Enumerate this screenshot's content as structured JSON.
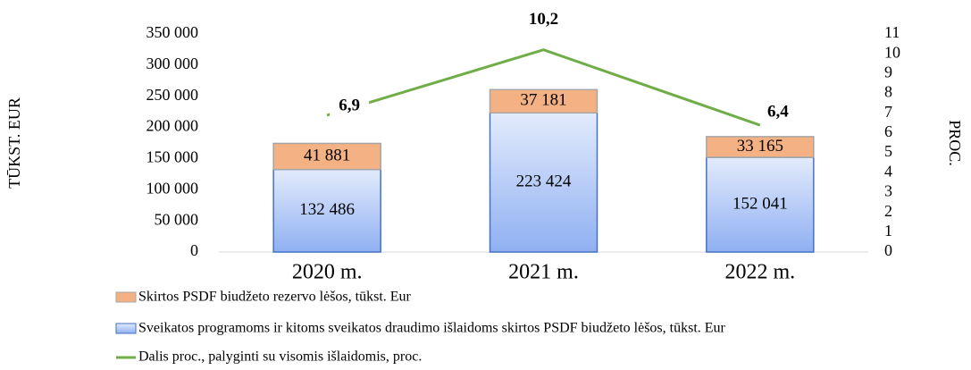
{
  "chart_data": {
    "type": "bar",
    "stacked": true,
    "categories": [
      "2020 m.",
      "2021 m.",
      "2022 m."
    ],
    "y_label": "TŪKST. EUR",
    "y2_label": "PROC.",
    "ylim": [
      0,
      350000
    ],
    "yticks": [
      0,
      {
        "value": 50000,
        "label": "50 000"
      },
      {
        "value": 100000,
        "label": "100 000"
      },
      {
        "value": 150000,
        "label": "150 000"
      },
      {
        "value": 200000,
        "label": "200 000"
      },
      {
        "value": 250000,
        "label": "250 000"
      },
      {
        "value": 300000,
        "label": "300 000"
      },
      {
        "value": 350000,
        "label": "350 000"
      }
    ],
    "y2lim": [
      0,
      11
    ],
    "y2ticks": [
      0,
      1,
      2,
      3,
      4,
      5,
      6,
      7,
      8,
      9,
      10,
      11
    ],
    "series": [
      {
        "name": "Sveikatos programoms ir kitoms sveikatos draudimo išlaidoms skirtos PSDF biudžeto lėšos, tūkst. Eur",
        "type": "bar",
        "color": "#8fb0f2",
        "values": [
          132486,
          223424,
          152041
        ],
        "value_labels": [
          "132 486",
          "223 424",
          "152 041"
        ]
      },
      {
        "name": "Skirtos PSDF biudžeto rezervo lėšos, tūkst. Eur",
        "type": "bar",
        "color": "#f4b183",
        "values": [
          41881,
          37181,
          33165
        ],
        "value_labels": [
          "41 881",
          "37 181",
          "33 165"
        ]
      },
      {
        "name": "Dalis proc., palyginti su visomis išlaidomis, proc.",
        "type": "line",
        "axis": "y2",
        "color": "#70ad47",
        "values": [
          6.9,
          10.2,
          6.4
        ],
        "value_labels": [
          "6,9",
          "10,2",
          "6,4"
        ]
      }
    ]
  }
}
